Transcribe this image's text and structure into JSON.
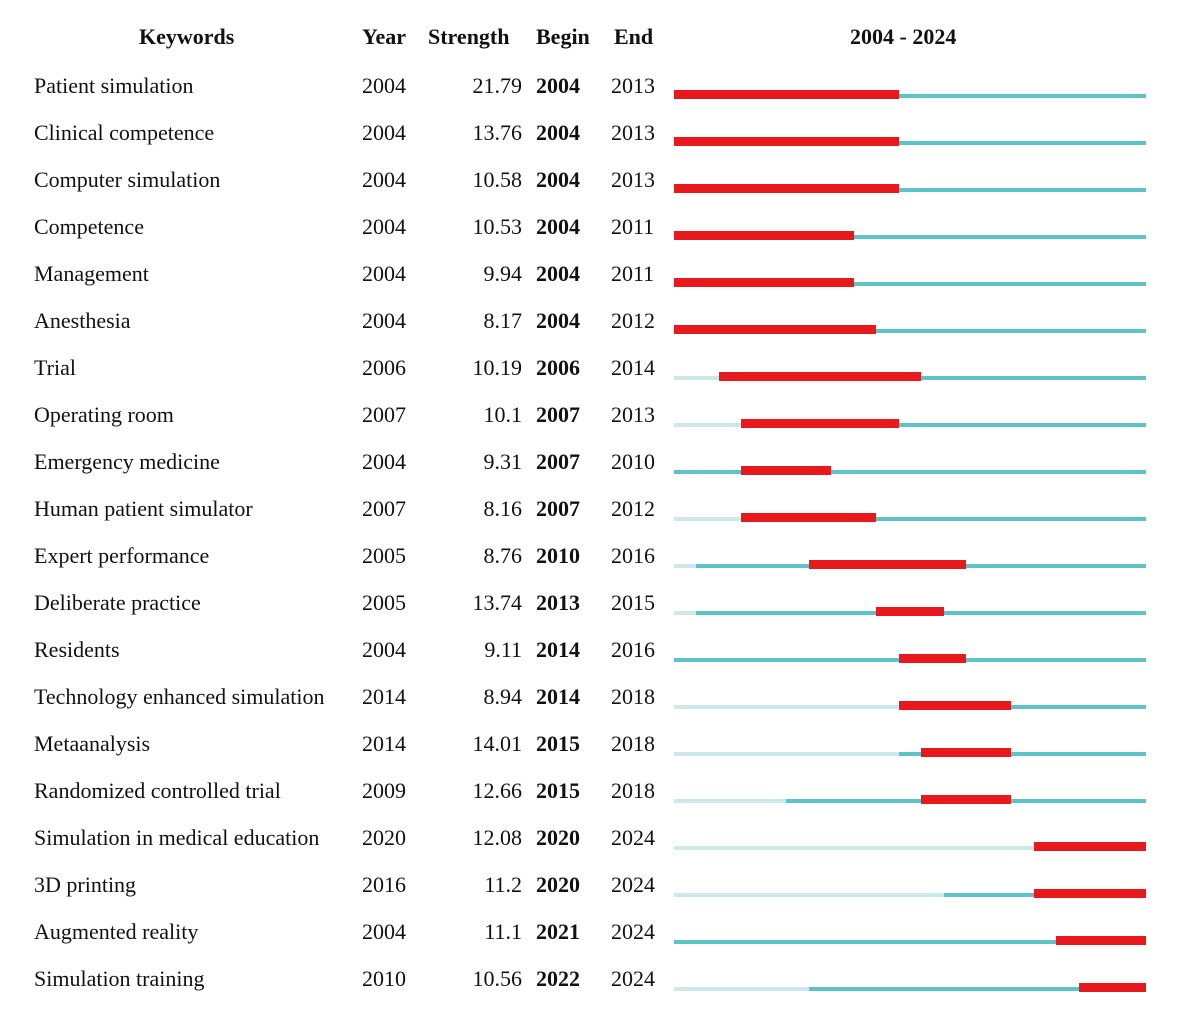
{
  "headers": {
    "keywords": "Keywords",
    "year": "Year",
    "strength": "Strength",
    "begin": "Begin",
    "end": "End",
    "range": "2004 - 2024"
  },
  "colors": {
    "burst": "#e8191c",
    "active": "#5ec3c6",
    "inactive": "#cde8ea"
  },
  "chart_data": {
    "type": "table",
    "start_year": 2004,
    "end_year": 2024,
    "rows": [
      {
        "keyword": "Patient simulation",
        "year": "2004",
        "strength": "21.79",
        "begin": "2004",
        "end": "2013"
      },
      {
        "keyword": "Clinical competence",
        "year": "2004",
        "strength": "13.76",
        "begin": "2004",
        "end": "2013"
      },
      {
        "keyword": "Computer simulation",
        "year": "2004",
        "strength": "10.58",
        "begin": "2004",
        "end": "2013"
      },
      {
        "keyword": "Competence",
        "year": "2004",
        "strength": "10.53",
        "begin": "2004",
        "end": "2011"
      },
      {
        "keyword": "Management",
        "year": "2004",
        "strength": "9.94",
        "begin": "2004",
        "end": "2011"
      },
      {
        "keyword": "Anesthesia",
        "year": "2004",
        "strength": "8.17",
        "begin": "2004",
        "end": "2012"
      },
      {
        "keyword": "Trial",
        "year": "2006",
        "strength": "10.19",
        "begin": "2006",
        "end": "2014"
      },
      {
        "keyword": "Operating room",
        "year": "2007",
        "strength": "10.1",
        "begin": "2007",
        "end": "2013"
      },
      {
        "keyword": "Emergency medicine",
        "year": "2004",
        "strength": "9.31",
        "begin": "2007",
        "end": "2010"
      },
      {
        "keyword": "Human patient simulator",
        "year": "2007",
        "strength": "8.16",
        "begin": "2007",
        "end": "2012"
      },
      {
        "keyword": "Expert performance",
        "year": "2005",
        "strength": "8.76",
        "begin": "2010",
        "end": "2016"
      },
      {
        "keyword": "Deliberate practice",
        "year": "2005",
        "strength": "13.74",
        "begin": "2013",
        "end": "2015"
      },
      {
        "keyword": "Residents",
        "year": "2004",
        "strength": "9.11",
        "begin": "2014",
        "end": "2016"
      },
      {
        "keyword": "Technology enhanced simulation",
        "year": "2014",
        "strength": "8.94",
        "begin": "2014",
        "end": "2018"
      },
      {
        "keyword": "Metaanalysis",
        "year": "2014",
        "strength": "14.01",
        "begin": "2015",
        "end": "2018"
      },
      {
        "keyword": "Randomized controlled trial",
        "year": "2009",
        "strength": "12.66",
        "begin": "2015",
        "end": "2018"
      },
      {
        "keyword": "Simulation in medical education",
        "year": "2020",
        "strength": "12.08",
        "begin": "2020",
        "end": "2024"
      },
      {
        "keyword": "3D printing",
        "year": "2016",
        "strength": "11.2",
        "begin": "2020",
        "end": "2024"
      },
      {
        "keyword": "Augmented reality",
        "year": "2004",
        "strength": "11.1",
        "begin": "2021",
        "end": "2024"
      },
      {
        "keyword": "Simulation training",
        "year": "2010",
        "strength": "10.56",
        "begin": "2022",
        "end": "2024"
      }
    ]
  }
}
